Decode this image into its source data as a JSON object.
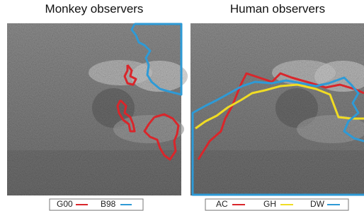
{
  "panels": [
    {
      "title": "Monkey observers",
      "legend": [
        {
          "name": "G00",
          "color": "#d9262b"
        },
        {
          "name": "B98",
          "color": "#2e9ad6"
        }
      ]
    },
    {
      "title": "Human observers",
      "legend": [
        {
          "name": "AC",
          "color": "#d9262b"
        },
        {
          "name": "GH",
          "color": "#f0dc24"
        },
        {
          "name": "DW",
          "color": "#2e9ad6"
        }
      ]
    }
  ]
}
